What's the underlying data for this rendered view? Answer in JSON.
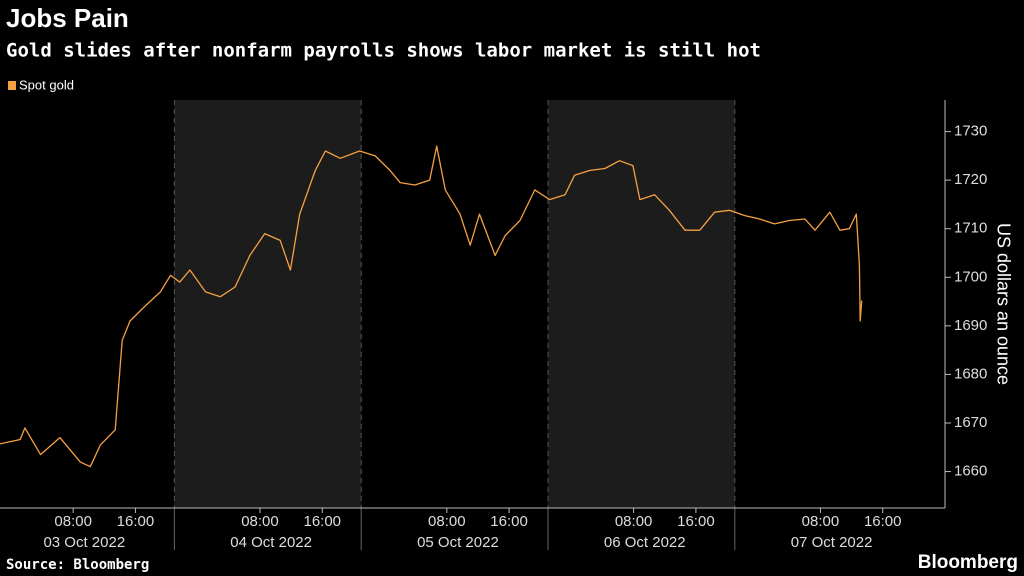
{
  "chart_data": {
    "type": "line",
    "title": "Jobs Pain",
    "subtitle": "Gold slides after nonfarm payrolls shows labor market is still hot",
    "y_axis_label": "US dollars an ounce",
    "source": "Source: Bloomberg",
    "brand": "Bloomberg",
    "x": [
      -1.4,
      1.2,
      1.8,
      3.8,
      6.3,
      8.9,
      10.2,
      11.5,
      13.4,
      14.3,
      15.3,
      17.2,
      19.2,
      20.5,
      21.7,
      23.0,
      25.0,
      26.9,
      28.8,
      30.7,
      32.6,
      34.6,
      35.9,
      37.1,
      39.1,
      40.4,
      42.3,
      44.8,
      46.8,
      48.7,
      50.0,
      51.9,
      53.8,
      54.7,
      55.8,
      57.7,
      59.0,
      60.2,
      62.2,
      63.5,
      65.4,
      67.3,
      69.2,
      71.2,
      72.4,
      74.4,
      76.3,
      78.2,
      79.9,
      80.8,
      82.7,
      84.6,
      86.6,
      88.5,
      90.4,
      92.3,
      94.3,
      96.2,
      98.1,
      100.0,
      102.0,
      103.3,
      105.2,
      106.5,
      107.7,
      108.6,
      109.0,
      109.1,
      109.3
    ],
    "series": [
      {
        "name": "Spot gold",
        "color": "#f5a043",
        "values": [
          1665.7,
          1666.6,
          1669,
          1663.5,
          1667,
          1662,
          1661,
          1665.5,
          1668.6,
          1687,
          1691,
          1694,
          1697,
          1700.4,
          1699,
          1701.5,
          1697,
          1696,
          1698,
          1704.5,
          1709,
          1707.6,
          1701.5,
          1713,
          1722,
          1726,
          1724.5,
          1726,
          1725,
          1722,
          1719.5,
          1719,
          1720,
          1727,
          1718,
          1713,
          1706.6,
          1713,
          1704.5,
          1708.6,
          1711.7,
          1718,
          1716,
          1717,
          1721,
          1722,
          1722.4,
          1724,
          1723,
          1716,
          1717,
          1713.8,
          1709.7,
          1709.7,
          1713.4,
          1713.8,
          1712.7,
          1712,
          1711,
          1711.7,
          1712,
          1709.7,
          1713.4,
          1709.7,
          1710,
          1713,
          1702.5,
          1691,
          1695.2
        ]
      }
    ],
    "xlim": [
      -1.4,
      120
    ],
    "xticks": [
      {
        "value": 8,
        "label": "08:00"
      },
      {
        "value": 16,
        "label": "16:00"
      },
      {
        "value": 32,
        "label": "08:00"
      },
      {
        "value": 40,
        "label": "16:00"
      },
      {
        "value": 56,
        "label": "08:00"
      },
      {
        "value": 64,
        "label": "16:00"
      },
      {
        "value": 80,
        "label": "08:00"
      },
      {
        "value": 88,
        "label": "16:00"
      },
      {
        "value": 104,
        "label": "08:00"
      },
      {
        "value": 112,
        "label": "16:00"
      }
    ],
    "days": [
      "03 Oct 2022",
      "04 Oct 2022",
      "05 Oct 2022",
      "06 Oct 2022",
      "07 Oct 2022"
    ],
    "shaded": [
      [
        21,
        45
      ],
      [
        69,
        93
      ]
    ],
    "ylim": [
      1652.5,
      1736.5
    ],
    "yticks": [
      1660,
      1670,
      1680,
      1690,
      1700,
      1710,
      1720,
      1730
    ]
  }
}
